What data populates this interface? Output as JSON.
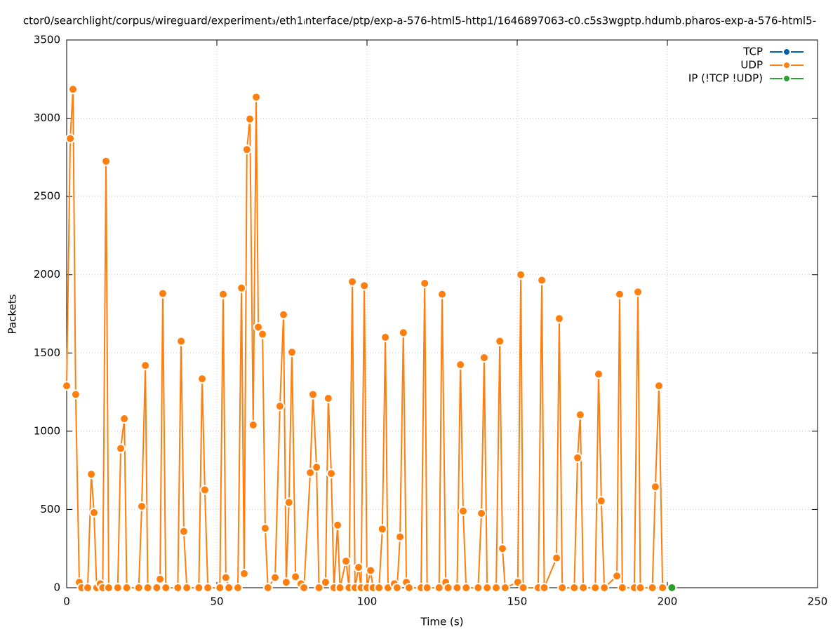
{
  "chart_data": {
    "type": "line",
    "title": "ctor0/searchlight/corpus/wireguard/experiment₃/eth1ᵢnterface/ptp/exp-a-576-html5-http1/1646897063-c0.c5s3wgptp.hdumb.pharos-exp-a-576-html5-",
    "xlabel": "Time (s)",
    "ylabel": "Packets",
    "xlim": [
      0,
      250
    ],
    "xticks": [
      0,
      50,
      100,
      150,
      200,
      250
    ],
    "ylim": [
      0,
      3500
    ],
    "yticks": [
      0,
      500,
      1000,
      1500,
      2000,
      2500,
      3000,
      3500
    ],
    "grid": true,
    "legend": "upper right",
    "series": [
      {
        "name": "TCP",
        "color": "#0060ad",
        "x": [],
        "values": []
      },
      {
        "name": "UDP",
        "color": "#ff7f0e",
        "x": [
          0,
          1.2,
          2.1,
          3,
          4.2,
          5,
          7,
          8.2,
          9.1,
          10,
          11.2,
          12,
          13.1,
          14,
          17,
          18,
          19.2,
          20,
          24,
          25,
          26.2,
          27,
          30,
          31.1,
          32,
          33,
          37,
          38.1,
          39,
          40,
          44,
          45.1,
          46,
          47,
          51,
          52.1,
          53,
          54,
          57,
          58.2,
          59.1,
          60,
          61,
          62.1,
          63.1,
          63.8,
          65.2,
          66.1,
          67,
          69.4,
          71,
          72.2,
          73.1,
          74,
          75,
          76.2,
          78,
          79,
          81.1,
          82,
          83.2,
          84,
          86.2,
          87.1,
          88.1,
          89,
          90.2,
          91,
          93,
          94,
          95.1,
          96,
          97.2,
          98,
          99.1,
          100,
          101.2,
          102,
          104,
          105.1,
          106.1,
          107,
          109.1,
          110,
          111,
          112.1,
          113.1,
          114,
          118,
          119.2,
          120,
          124,
          125,
          126.2,
          127,
          130,
          131.1,
          132,
          133,
          137,
          138.1,
          139,
          140,
          143,
          144.2,
          145.1,
          146,
          150.2,
          151.2,
          152,
          157,
          158.2,
          159,
          163.1,
          164,
          165,
          169,
          170.1,
          171,
          172,
          176,
          177.1,
          178,
          179,
          183.2,
          184.1,
          185,
          189,
          190.2,
          191,
          195,
          196,
          197.2,
          198.4
        ],
        "values": [
          1290,
          2870,
          3185,
          1235,
          35,
          0,
          0,
          725,
          480,
          0,
          25,
          0,
          2725,
          0,
          0,
          890,
          1080,
          0,
          0,
          520,
          1420,
          0,
          0,
          55,
          1880,
          0,
          0,
          1575,
          360,
          0,
          0,
          1335,
          625,
          0,
          0,
          1875,
          65,
          0,
          0,
          1915,
          90,
          2800,
          2995,
          1040,
          3135,
          1665,
          1620,
          380,
          0,
          65,
          1160,
          1745,
          35,
          545,
          1505,
          70,
          25,
          0,
          735,
          1235,
          770,
          0,
          35,
          1210,
          730,
          0,
          400,
          0,
          170,
          0,
          1955,
          0,
          130,
          0,
          1930,
          0,
          110,
          0,
          0,
          375,
          1600,
          0,
          25,
          0,
          325,
          1630,
          35,
          0,
          0,
          1945,
          0,
          0,
          1875,
          35,
          0,
          0,
          1425,
          490,
          0,
          0,
          475,
          1470,
          0,
          0,
          1575,
          250,
          0,
          35,
          2000,
          0,
          0,
          1965,
          0,
          190,
          1720,
          0,
          0,
          830,
          1105,
          0,
          0,
          1365,
          555,
          0,
          75,
          1875,
          0,
          0,
          1890,
          0,
          0,
          645,
          1290,
          0
        ]
      },
      {
        "name": "IP (!TCP  !UDP)",
        "color": "#2ca02c",
        "x": [
          201.5
        ],
        "values": [
          0
        ]
      }
    ]
  }
}
